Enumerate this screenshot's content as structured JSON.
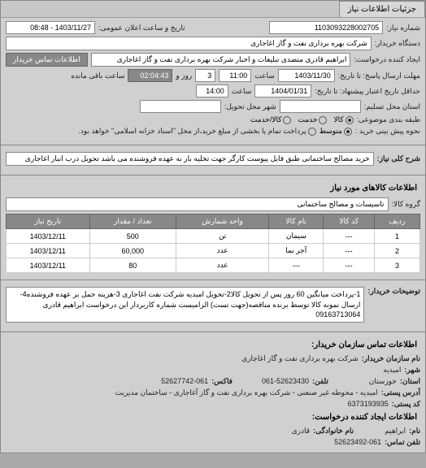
{
  "tab": {
    "label": "جزئیات اطلاعات نیاز"
  },
  "header": {
    "request_no_label": "شماره نیاز:",
    "request_no": "1103093228002705",
    "datetime_label": "تاریخ و ساعت اعلان عمومی:",
    "datetime": "1403/11/27 - 08:48",
    "org_label": "دستگاه خریدار:",
    "org": "شرکت بهره برداری نفت و گاز اغاجاری",
    "requester_label": "ایجاد کننده درخواست:",
    "requester": "ابراهیم قادری متصدی تبلیغات و اخبار شرکت بهره برداری نفت و گاز اغاجاری",
    "contact_btn": "اطلاعات تماس خریدار"
  },
  "deadlines": {
    "response_to_label": "مهلت ارسال پاسخ: تا تاریخ:",
    "response_to_date": "1403/11/30",
    "time_label": "ساعت",
    "response_to_time": "11:00",
    "days_label": "روز و",
    "days": "3",
    "remaining_label": "ساعت باقی مانده",
    "remaining": "02:04:43",
    "validity_label": "حداقل تاریخ اعتبار پیشنهاد: تا تاریخ:",
    "validity_date": "1404/01/31",
    "validity_time": "14:00"
  },
  "location": {
    "state_label": "استان محل تسلیم:",
    "city_label": "شهر محل تحویل:"
  },
  "budget": {
    "row_label": "طبقه بندی موضوعی:",
    "options": [
      "کالا",
      "خدمت",
      "کالا/خدمت"
    ],
    "selected": 0,
    "method_label": "نحوه پیش بینی خرید :",
    "method_options": [
      "متوسط"
    ],
    "method_selected": 0,
    "note": "پرداخت تمام یا بخشی از مبلغ خرید،از محل \"اسناد خزانه اسلامی\" خواهد بود."
  },
  "need": {
    "title_label": "شرح کلی نیاز:",
    "title": "خرید مصالح ساختمانی طبق فایل پیوست کارگر جهت تخلیه بار به عهده فروشنده می باشد تحویل درب انبار اغاجاری"
  },
  "goods_section": {
    "title": "اطلاعات کالاهای مورد نیاز",
    "group_label": "گروه کالا:",
    "group": "تاسیسات و مصالح ساختمانی"
  },
  "table": {
    "columns": [
      "ردیف",
      "کد کالا",
      "نام کالا",
      "واحد شمارش",
      "تعداد / مقدار",
      "تاریخ نیاز"
    ],
    "rows": [
      [
        "1",
        "---",
        "سیمان",
        "تن",
        "500",
        "1403/12/11"
      ],
      [
        "2",
        "---",
        "آجر نما",
        "عدد",
        "60,000",
        "1403/12/11"
      ],
      [
        "3",
        "---",
        "---",
        "عدد",
        "80",
        "1403/12/11"
      ]
    ],
    "watermark": "سامانه تدارکات الکترونیکی دولت"
  },
  "buyer_notes": {
    "label": "توضیحات خریدار:",
    "text": "1-پرداخت میانگین 60 روز پس از تحویل کالا2-تحویل امیدیه شرکت نفت اغاجاری 3-هزینه حمل بر عهده فروشنده4-ارسال نمونه کالا توسط برنده مناقصه(جهت تست) الزامیست شماره کاربردار این درخواست ابراهیم قادری 09163713064"
  },
  "contact": {
    "title": "اطلاعات تماس سازمان خریدار:",
    "org_label": "نام سازمان خریدار:",
    "org": "شرکت بهره برداری نفت و گاز اغاجاری",
    "city_label": "شهر:",
    "city": "امیدیه",
    "state_label": "استان:",
    "state": "خوزستان",
    "phone_label": "تلفن:",
    "phone": "061-52623430",
    "fax_label": "فاکس:",
    "fax": "52627742-061",
    "address_label": "آدرس پستی:",
    "address": "امیدیه - محوطه غیر صنعتی - شرکت بهره برداری نفت و گاز آغاجاری - ساختمان مدیریت",
    "postal_label": "کد پستی:",
    "postal": "6373193935",
    "creator_title": "اطلاعات ایجاد کننده درخواست:",
    "name_label": "نام:",
    "name": "ابراهیم",
    "family_label": "نام خانوادگی:",
    "family": "قادری",
    "creator_phone_label": "تلفن تماس:",
    "creator_phone": "52623492-061"
  }
}
